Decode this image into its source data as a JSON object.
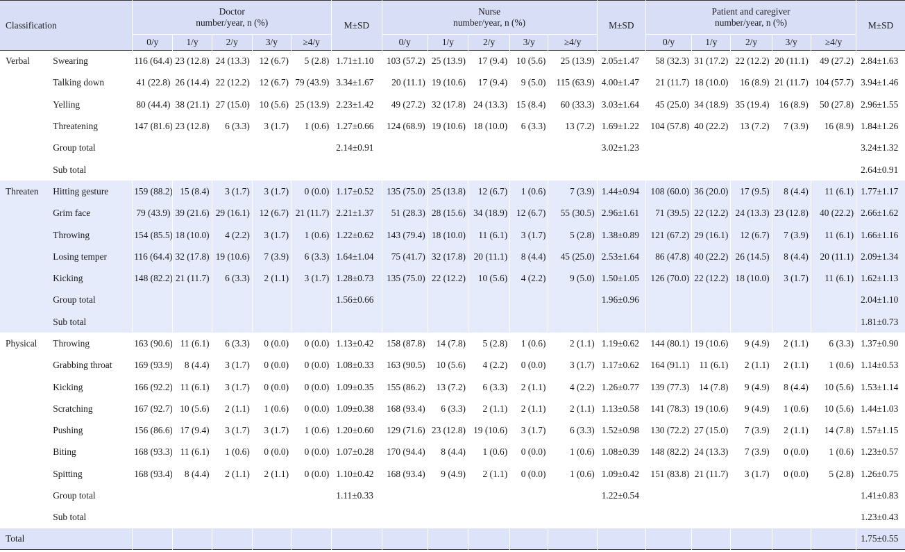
{
  "header": {
    "classification": "Classification",
    "groups": [
      {
        "line1": "Doctor",
        "line2": "number/year, n (%)"
      },
      {
        "line1": "Nurse",
        "line2": "number/year, n (%)"
      },
      {
        "line1": "Patient and caregiver",
        "line2": "number/year, n (%)"
      }
    ],
    "msd": "M±SD",
    "freq": [
      "0/y",
      "1/y",
      "2/y",
      "3/y",
      "≥4/y"
    ]
  },
  "sections": [
    {
      "name": "Verbal",
      "rows": [
        {
          "item": "Swearing",
          "d": [
            "116 (64.4)",
            "23 (12.8)",
            "24 (13.3)",
            "12 (6.7)",
            "5 (2.8)"
          ],
          "dm": "1.71±1.10",
          "n": [
            "103 (57.2)",
            "25 (13.9)",
            "17 (9.4)",
            "10 (5.6)",
            "25 (13.9)"
          ],
          "nm": "2.05±1.47",
          "p": [
            "58 (32.3)",
            "31 (17.2)",
            "22 (12.2)",
            "20 (11.1)",
            "49 (27.2)"
          ],
          "pm": "2.84±1.63"
        },
        {
          "item": "Talking down",
          "d": [
            "41 (22.8)",
            "26 (14.4)",
            "22 (12.2)",
            "12 (6.7)",
            "79 (43.9)"
          ],
          "dm": "3.34±1.67",
          "n": [
            "20 (11.1)",
            "19 (10.6)",
            "17 (9.4)",
            "9 (5.0)",
            "115 (63.9)"
          ],
          "nm": "4.00±1.47",
          "p": [
            "21 (11.7)",
            "18 (10.0)",
            "16 (8.9)",
            "21 (11.7)",
            "104 (57.7)"
          ],
          "pm": "3.94±1.46"
        },
        {
          "item": "Yelling",
          "d": [
            "80 (44.4)",
            "38 (21.1)",
            "27 (15.0)",
            "10 (5.6)",
            "25 (13.9)"
          ],
          "dm": "2.23±1.42",
          "n": [
            "49 (27.2)",
            "32 (17.8)",
            "24 (13.3)",
            "15 (8.4)",
            "60 (33.3)"
          ],
          "nm": "3.03±1.64",
          "p": [
            "45 (25.0)",
            "34 (18.9)",
            "35 (19.4)",
            "16 (8.9)",
            "50 (27.8)"
          ],
          "pm": "2.96±1.55"
        },
        {
          "item": "Threatening",
          "d": [
            "147 (81.6)",
            "23 (12.8)",
            "6 (3.3)",
            "3 (1.7)",
            "1 (0.6)"
          ],
          "dm": "1.27±0.66",
          "n": [
            "124 (68.9)",
            "19 (10.6)",
            "18 (10.0)",
            "6 (3.3)",
            "13 (7.2)"
          ],
          "nm": "1.69±1.22",
          "p": [
            "104 (57.8)",
            "40 (22.2)",
            "13 (7.2)",
            "7 (3.9)",
            "16 (8.9)"
          ],
          "pm": "1.84±1.26"
        },
        {
          "item": "Group total",
          "d": [
            "",
            "",
            "",
            "",
            ""
          ],
          "dm": "2.14±0.91",
          "n": [
            "",
            "",
            "",
            "",
            ""
          ],
          "nm": "3.02±1.23",
          "p": [
            "",
            "",
            "",
            "",
            ""
          ],
          "pm": "3.24±1.32"
        },
        {
          "item": "Sub total",
          "d": [
            "",
            "",
            "",
            "",
            ""
          ],
          "dm": "",
          "n": [
            "",
            "",
            "",
            "",
            ""
          ],
          "nm": "",
          "p": [
            "",
            "",
            "",
            "",
            ""
          ],
          "pm": "2.64±0.91"
        }
      ]
    },
    {
      "name": "Threaten",
      "rows": [
        {
          "item": "Hitting gesture",
          "d": [
            "159 (88.2)",
            "15 (8.4)",
            "3 (1.7)",
            "3 (1.7)",
            "0 (0.0)"
          ],
          "dm": "1.17±0.52",
          "n": [
            "135 (75.0)",
            "25 (13.8)",
            "12 (6.7)",
            "1 (0.6)",
            "7 (3.9)"
          ],
          "nm": "1.44±0.94",
          "p": [
            "108 (60.0)",
            "36 (20.0)",
            "17 (9.5)",
            "8 (4.4)",
            "11 (6.1)"
          ],
          "pm": "1.77±1.17"
        },
        {
          "item": "Grim face",
          "d": [
            "79 (43.9)",
            "39 (21.6)",
            "29 (16.1)",
            "12 (6.7)",
            "21 (11.7)"
          ],
          "dm": "2.21±1.37",
          "n": [
            "51 (28.3)",
            "28 (15.6)",
            "34 (18.9)",
            "12 (6.7)",
            "55 (30.5)"
          ],
          "nm": "2.96±1.61",
          "p": [
            "71 (39.5)",
            "22 (12.2)",
            "24 (13.3)",
            "23 (12.8)",
            "40 (22.2)"
          ],
          "pm": "2.66±1.62"
        },
        {
          "item": "Throwing",
          "d": [
            "154 (85.5)",
            "18 (10.0)",
            "4 (2.2)",
            "3 (1.7)",
            "1 (0.6)"
          ],
          "dm": "1.22±0.62",
          "n": [
            "143 (79.4)",
            "18 (10.0)",
            "11 (6.1)",
            "3 (1.7)",
            "5 (2.8)"
          ],
          "nm": "1.38±0.89",
          "p": [
            "121 (67.2)",
            "29 (16.1)",
            "12 (6.7)",
            "7 (3.9)",
            "11 (6.1)"
          ],
          "pm": "1.66±1.16"
        },
        {
          "item": "Losing temper",
          "d": [
            "116 (64.4)",
            "32 (17.8)",
            "19 (10.6)",
            "7 (3.9)",
            "6 (3.3)"
          ],
          "dm": "1.64±1.04",
          "n": [
            "75 (41.7)",
            "32 (17.8)",
            "20 (11.1)",
            "8 (4.4)",
            "45 (25.0)"
          ],
          "nm": "2.53±1.64",
          "p": [
            "86 (47.8)",
            "40 (22.2)",
            "26 (14.5)",
            "8 (4.4)",
            "20 (11.1)"
          ],
          "pm": "2.09±1.34"
        },
        {
          "item": "Kicking",
          "d": [
            "148 (82.2)",
            "21 (11.7)",
            "6 (3.3)",
            "2 (1.1)",
            "3 (1.7)"
          ],
          "dm": "1.28±0.73",
          "n": [
            "135 (75.0)",
            "22 (12.2)",
            "10 (5.6)",
            "4 (2.2)",
            "9 (5.0)"
          ],
          "nm": "1.50±1.05",
          "p": [
            "126 (70.0)",
            "22 (12.2)",
            "18 (10.0)",
            "3 (1.7)",
            "11 (6.1)"
          ],
          "pm": "1.62±1.13"
        },
        {
          "item": "Group total",
          "d": [
            "",
            "",
            "",
            "",
            ""
          ],
          "dm": "1.56±0.66",
          "n": [
            "",
            "",
            "",
            "",
            ""
          ],
          "nm": "1.96±0.96",
          "p": [
            "",
            "",
            "",
            "",
            ""
          ],
          "pm": "2.04±1.10"
        },
        {
          "item": "Sub total",
          "d": [
            "",
            "",
            "",
            "",
            ""
          ],
          "dm": "",
          "n": [
            "",
            "",
            "",
            "",
            ""
          ],
          "nm": "",
          "p": [
            "",
            "",
            "",
            "",
            ""
          ],
          "pm": "1.81±0.73"
        }
      ]
    },
    {
      "name": "Physical",
      "rows": [
        {
          "item": "Throwing",
          "d": [
            "163 (90.6)",
            "11 (6.1)",
            "6 (3.3)",
            "0 (0.0)",
            "0 (0.0)"
          ],
          "dm": "1.13±0.42",
          "n": [
            "158 (87.8)",
            "14 (7.8)",
            "5 (2.8)",
            "1 (0.6)",
            "2 (1.1)"
          ],
          "nm": "1.19±0.62",
          "p": [
            "144 (80.1)",
            "19 (10.6)",
            "9 (4.9)",
            "2 (1.1)",
            "6 (3.3)"
          ],
          "pm": "1.37±0.90"
        },
        {
          "item": "Grabbing throat",
          "d": [
            "169 (93.9)",
            "8 (4.4)",
            "3 (1.7)",
            "0 (0.0)",
            "0 (0.0)"
          ],
          "dm": "1.08±0.33",
          "n": [
            "163 (90.5)",
            "10 (5.6)",
            "4 (2.2)",
            "0 (0.0)",
            "3 (1.7)"
          ],
          "nm": "1.17±0.62",
          "p": [
            "164 (91.1)",
            "11 (6.1)",
            "2 (1.1)",
            "2 (1.1)",
            "1 (0.6)"
          ],
          "pm": "1.14±0.53"
        },
        {
          "item": "Kicking",
          "d": [
            "166 (92.2)",
            "11 (6.1)",
            "3 (1.7)",
            "0 (0.0)",
            "0 (0.0)"
          ],
          "dm": "1.09±0.35",
          "n": [
            "155 (86.2)",
            "13 (7.2)",
            "6 (3.3)",
            "2 (1.1)",
            "4 (2.2)"
          ],
          "nm": "1.26±0.77",
          "p": [
            "139 (77.3)",
            "14 (7.8)",
            "9 (4.9)",
            "8 (4.4)",
            "10 (5.6)"
          ],
          "pm": "1.53±1.14"
        },
        {
          "item": "Scratching",
          "d": [
            "167 (92.7)",
            "10 (5.6)",
            "2 (1.1)",
            "1 (0.6)",
            "0 (0.0)"
          ],
          "dm": "1.09±0.38",
          "n": [
            "168 (93.4)",
            "6 (3.3)",
            "2 (1.1)",
            "2 (1.1)",
            "2 (1.1)"
          ],
          "nm": "1.13±0.58",
          "p": [
            "141 (78.3)",
            "19 (10.6)",
            "9 (4.9)",
            "1 (0.6)",
            "10 (5.6)"
          ],
          "pm": "1.44±1.03"
        },
        {
          "item": "Pushing",
          "d": [
            "156 (86.6)",
            "17 (9.4)",
            "3 (1.7)",
            "3 (1.7)",
            "1 (0.6)"
          ],
          "dm": "1.20±0.60",
          "n": [
            "129 (71.6)",
            "23 (12.8)",
            "19 (10.6)",
            "3 (1.7)",
            "6 (3.3)"
          ],
          "nm": "1.52±0.98",
          "p": [
            "130 (72.2)",
            "27 (15.0)",
            "7 (3.9)",
            "2 (1.1)",
            "14 (7.8)"
          ],
          "pm": "1.57±1.15"
        },
        {
          "item": "Biting",
          "d": [
            "168 (93.3)",
            "11 (6.1)",
            "1 (0.6)",
            "0 (0.0)",
            "0 (0.0)"
          ],
          "dm": "1.07±0.28",
          "n": [
            "170 (94.4)",
            "8 (4.4)",
            "1 (0.6)",
            "0 (0.0)",
            "1 (0.6)"
          ],
          "nm": "1.08±0.39",
          "p": [
            "148 (82.2)",
            "24 (13.3)",
            "7 (3.9)",
            "0 (0.0)",
            "1 (0.6)"
          ],
          "pm": "1.23±0.57"
        },
        {
          "item": "Spitting",
          "d": [
            "168 (93.4)",
            "8 (4.4)",
            "2 (1.1)",
            "2 (1.1)",
            "0 (0.0)"
          ],
          "dm": "1.10±0.42",
          "n": [
            "168 (93.4)",
            "9 (4.9)",
            "2 (1.1)",
            "0 (0.0)",
            "1 (0.6)"
          ],
          "nm": "1.09±0.42",
          "p": [
            "151 (83.8)",
            "21 (11.7)",
            "3 (1.7)",
            "0 (0.0)",
            "5 (2.8)"
          ],
          "pm": "1.26±0.75"
        },
        {
          "item": "Group total",
          "d": [
            "",
            "",
            "",
            "",
            ""
          ],
          "dm": "1.11±0.33",
          "n": [
            "",
            "",
            "",
            "",
            ""
          ],
          "nm": "1.22±0.54",
          "p": [
            "",
            "",
            "",
            "",
            ""
          ],
          "pm": "1.41±0.83"
        },
        {
          "item": "Sub total",
          "d": [
            "",
            "",
            "",
            "",
            ""
          ],
          "dm": "",
          "n": [
            "",
            "",
            "",
            "",
            ""
          ],
          "nm": "",
          "p": [
            "",
            "",
            "",
            "",
            ""
          ],
          "pm": "1.23±0.43"
        }
      ]
    }
  ],
  "total": {
    "label": "Total",
    "value": "1.75±0.55"
  }
}
